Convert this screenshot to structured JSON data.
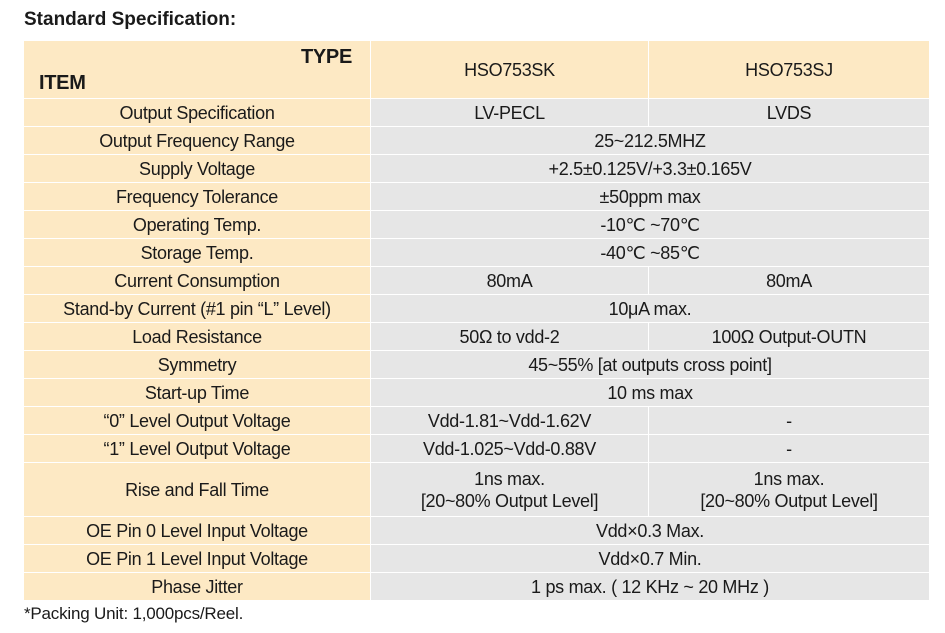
{
  "title": "Standard Specification:",
  "header": {
    "type_label": "TYPE",
    "item_label": "ITEM",
    "models": [
      "HSO753SK",
      "HSO753SJ"
    ]
  },
  "rows": [
    {
      "item": "Output Specification",
      "values": [
        "LV-PECL",
        "LVDS"
      ]
    },
    {
      "item": "Output Frequency Range",
      "merged": "25~212.5MHZ"
    },
    {
      "item": "Supply Voltage",
      "merged": "+2.5±0.125V/+3.3±0.165V"
    },
    {
      "item": "Frequency Tolerance",
      "merged": "±50ppm max"
    },
    {
      "item": "Operating Temp.",
      "merged": "-10℃ ~70℃"
    },
    {
      "item": "Storage Temp.",
      "merged": "-40℃ ~85℃"
    },
    {
      "item": "Current Consumption",
      "values": [
        "80mA",
        "80mA"
      ]
    },
    {
      "item": "Stand-by Current (#1 pin “L” Level)",
      "merged": "10μA max."
    },
    {
      "item": "Load Resistance",
      "values": [
        "50Ω to vdd-2",
        "100Ω Output-OUTN"
      ]
    },
    {
      "item": "Symmetry",
      "merged": "45~55% [at outputs cross point]"
    },
    {
      "item": "Start-up Time",
      "merged": "10 ms max"
    },
    {
      "item": "“0” Level Output Voltage",
      "values": [
        "Vdd-1.81~Vdd-1.62V",
        "-"
      ]
    },
    {
      "item": "“1” Level Output Voltage",
      "values": [
        "Vdd-1.025~Vdd-0.88V",
        "-"
      ]
    },
    {
      "item": "Rise and Fall Time",
      "values": [
        [
          "1ns max.",
          "[20~80% Output Level]"
        ],
        [
          "1ns max.",
          "[20~80% Output Level]"
        ]
      ]
    },
    {
      "item": "OE Pin 0 Level Input Voltage",
      "merged": "Vdd×0.3 Max."
    },
    {
      "item": "OE Pin 1 Level Input Voltage",
      "merged": "Vdd×0.7 Min."
    },
    {
      "item": "Phase Jitter",
      "merged": "1 ps max. ( 12 KHz ~ 20 MHz )"
    }
  ],
  "note": "*Packing Unit: 1,000pcs/Reel.",
  "colors": {
    "item_bg": "#fde9c4",
    "model_a_bg": "#f3d9ae",
    "value_bg": "#e6e6e6"
  }
}
